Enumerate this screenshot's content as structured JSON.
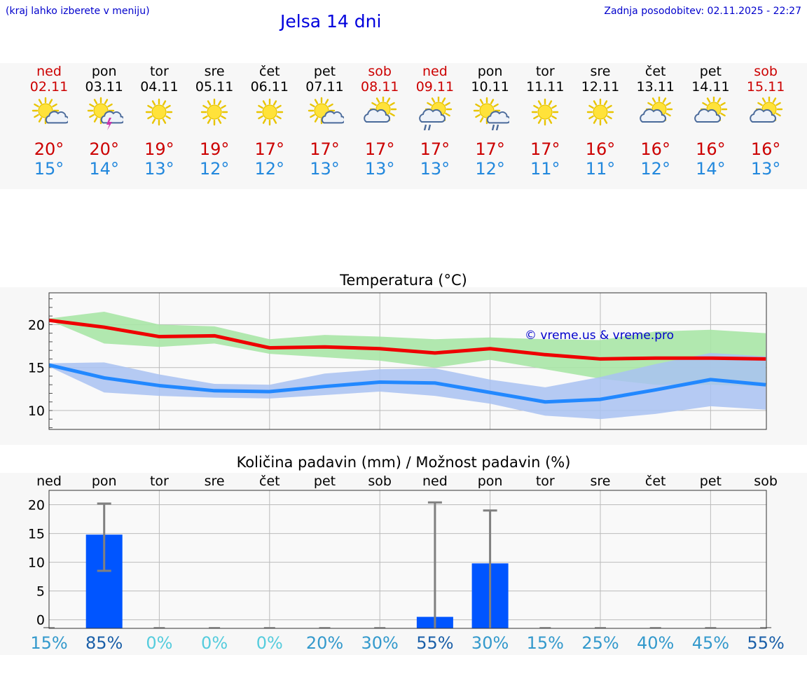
{
  "header": {
    "hint": "(kraj lahko izberete v meniju)",
    "title": "Jelsa 14 dni",
    "updated": "Zadnja posodobitev: 02.11.2025 - 22:27"
  },
  "days": [
    {
      "name": "ned",
      "date": "02.11",
      "weekend": true,
      "icon": "sun-cloud",
      "tmax": "20°",
      "tmin": "15°"
    },
    {
      "name": "pon",
      "date": "03.11",
      "weekend": false,
      "icon": "sun-cloud-lightning",
      "tmax": "20°",
      "tmin": "14°"
    },
    {
      "name": "tor",
      "date": "04.11",
      "weekend": false,
      "icon": "sun",
      "tmax": "19°",
      "tmin": "13°"
    },
    {
      "name": "sre",
      "date": "05.11",
      "weekend": false,
      "icon": "sun",
      "tmax": "19°",
      "tmin": "12°"
    },
    {
      "name": "čet",
      "date": "06.11",
      "weekend": false,
      "icon": "sun",
      "tmax": "17°",
      "tmin": "12°"
    },
    {
      "name": "pet",
      "date": "07.11",
      "weekend": false,
      "icon": "sun-cloud",
      "tmax": "17°",
      "tmin": "13°"
    },
    {
      "name": "sob",
      "date": "08.11",
      "weekend": true,
      "icon": "cloud-sun",
      "tmax": "17°",
      "tmin": "13°"
    },
    {
      "name": "ned",
      "date": "09.11",
      "weekend": true,
      "icon": "cloud-sun-rain",
      "tmax": "17°",
      "tmin": "13°"
    },
    {
      "name": "pon",
      "date": "10.11",
      "weekend": false,
      "icon": "sun-cloud-rain",
      "tmax": "17°",
      "tmin": "12°"
    },
    {
      "name": "tor",
      "date": "11.11",
      "weekend": false,
      "icon": "sun",
      "tmax": "17°",
      "tmin": "11°"
    },
    {
      "name": "sre",
      "date": "12.11",
      "weekend": false,
      "icon": "sun",
      "tmax": "16°",
      "tmin": "11°"
    },
    {
      "name": "čet",
      "date": "13.11",
      "weekend": false,
      "icon": "cloud-sun",
      "tmax": "16°",
      "tmin": "12°"
    },
    {
      "name": "pet",
      "date": "14.11",
      "weekend": false,
      "icon": "cloud-sun",
      "tmax": "16°",
      "tmin": "14°"
    },
    {
      "name": "sob",
      "date": "15.11",
      "weekend": true,
      "icon": "cloud-sun",
      "tmax": "16°",
      "tmin": "13°"
    }
  ],
  "colors": {
    "max_line": "#ee0000",
    "min_line": "#2288ff",
    "max_band": "#a8e6a6",
    "min_band": "#a9c2f2",
    "bar": "#0055ff",
    "err": "#808080",
    "weekend": "#cc0000",
    "tmin_text": "#2288dd"
  },
  "chart_data": [
    {
      "type": "line",
      "title": "Temperatura (°C)",
      "watermark": "© vreme.us & vreme.pro",
      "ylim": [
        7.8,
        23.7
      ],
      "yticks": [
        10,
        15,
        20
      ],
      "x": [
        0,
        1,
        2,
        3,
        4,
        5,
        6,
        7,
        8,
        9,
        10,
        11,
        12,
        13
      ],
      "series": [
        {
          "name": "max",
          "values": [
            20.5,
            19.7,
            18.6,
            18.7,
            17.3,
            17.4,
            17.2,
            16.7,
            17.2,
            16.5,
            16.0,
            16.1,
            16.1,
            16.0
          ],
          "band_low": [
            20.5,
            17.8,
            17.4,
            17.8,
            16.6,
            16.2,
            15.8,
            15.0,
            15.9,
            14.8,
            13.7,
            13.0,
            13.0,
            12.8
          ],
          "band_high": [
            20.7,
            21.5,
            20.0,
            19.8,
            18.3,
            18.8,
            18.6,
            18.3,
            18.5,
            18.3,
            18.2,
            19.2,
            19.4,
            19.0
          ]
        },
        {
          "name": "min",
          "values": [
            15.3,
            13.8,
            12.9,
            12.3,
            12.2,
            12.8,
            13.3,
            13.2,
            12.1,
            11.0,
            11.3,
            12.4,
            13.6,
            13.0
          ],
          "band_low": [
            15.1,
            12.1,
            11.7,
            11.5,
            11.4,
            11.8,
            12.2,
            11.7,
            10.8,
            9.4,
            9.0,
            9.6,
            10.5,
            10.1
          ],
          "band_high": [
            15.5,
            15.6,
            14.2,
            13.1,
            13.0,
            14.3,
            14.8,
            14.9,
            13.6,
            12.7,
            13.9,
            15.4,
            16.7,
            16.3
          ]
        }
      ]
    },
    {
      "type": "bar",
      "title": "Količina padavin (mm) / Možnost padavin (%)",
      "ylim": [
        -1.5,
        22.5
      ],
      "yticks": [
        0,
        5,
        10,
        15,
        20
      ],
      "categories": [
        "ned",
        "pon",
        "tor",
        "sre",
        "čet",
        "pet",
        "sob",
        "ned",
        "pon",
        "tor",
        "sre",
        "čet",
        "pet",
        "sob"
      ],
      "values": [
        0,
        14.8,
        0,
        0,
        0,
        0,
        0,
        0.5,
        9.8,
        0,
        0,
        0,
        0,
        0
      ],
      "err_low": [
        0,
        8.5,
        0,
        0,
        0,
        0,
        0,
        0,
        0,
        0,
        0,
        0,
        0,
        0
      ],
      "err_high": [
        0,
        20.2,
        0,
        0,
        0,
        0,
        0,
        20.4,
        19,
        0,
        0,
        0,
        0,
        0
      ],
      "probability": [
        "15%",
        "85%",
        "0%",
        "0%",
        "0%",
        "20%",
        "30%",
        "55%",
        "30%",
        "15%",
        "25%",
        "40%",
        "45%",
        "55%"
      ],
      "probability_colors": [
        "#3399cc",
        "#1a5fa8",
        "#55ccdd",
        "#55ccdd",
        "#55ccdd",
        "#3399cc",
        "#3399cc",
        "#1a5fa8",
        "#3399cc",
        "#3399cc",
        "#3399cc",
        "#3399cc",
        "#3399cc",
        "#1a5fa8"
      ]
    }
  ]
}
